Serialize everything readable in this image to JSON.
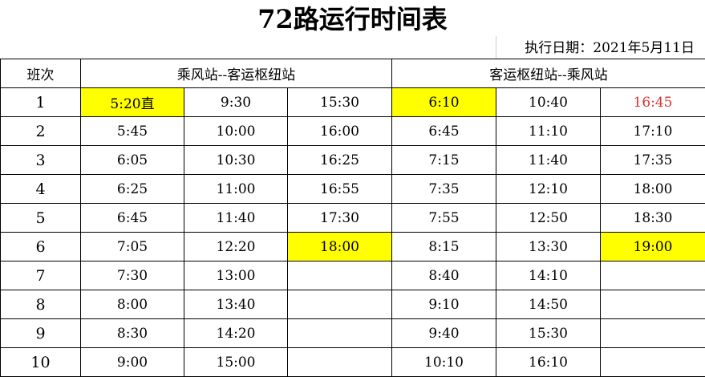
{
  "title": "72路运行时间表",
  "effective_date": "执行日期：2021年5月11日",
  "headers": {
    "index": "班次",
    "dir1": "乘风站--客运枢纽站",
    "dir2": "客运枢纽站--乘风站"
  },
  "highlight_color": "#ffff00",
  "alert_color": "#e03030",
  "rows": [
    {
      "n": "1",
      "dir1": [
        "5:20直",
        "9:30",
        "15:30"
      ],
      "dir2": [
        "6:10",
        "10:40",
        "16:45"
      ]
    },
    {
      "n": "2",
      "dir1": [
        "5:45",
        "10:00",
        "16:00"
      ],
      "dir2": [
        "6:45",
        "11:10",
        "17:10"
      ]
    },
    {
      "n": "3",
      "dir1": [
        "6:05",
        "10:30",
        "16:25"
      ],
      "dir2": [
        "7:15",
        "11:40",
        "17:35"
      ]
    },
    {
      "n": "4",
      "dir1": [
        "6:25",
        "11:00",
        "16:55"
      ],
      "dir2": [
        "7:35",
        "12:10",
        "18:00"
      ]
    },
    {
      "n": "5",
      "dir1": [
        "6:45",
        "11:40",
        "17:30"
      ],
      "dir2": [
        "7:55",
        "12:50",
        "18:30"
      ]
    },
    {
      "n": "6",
      "dir1": [
        "7:05",
        "12:20",
        "18:00"
      ],
      "dir2": [
        "8:15",
        "13:30",
        "19:00"
      ]
    },
    {
      "n": "7",
      "dir1": [
        "7:30",
        "13:00",
        ""
      ],
      "dir2": [
        "8:40",
        "14:10",
        ""
      ]
    },
    {
      "n": "8",
      "dir1": [
        "8:00",
        "13:40",
        ""
      ],
      "dir2": [
        "9:10",
        "14:50",
        ""
      ]
    },
    {
      "n": "9",
      "dir1": [
        "8:30",
        "14:20",
        ""
      ],
      "dir2": [
        "9:40",
        "15:30",
        ""
      ]
    },
    {
      "n": "10",
      "dir1": [
        "9:00",
        "15:00",
        ""
      ],
      "dir2": [
        "10:10",
        "16:10",
        ""
      ]
    }
  ],
  "highlighted_cells": [
    "1-dir1-0",
    "1-dir2-0",
    "6-dir1-2",
    "6-dir2-2"
  ],
  "red_cells": [
    "1-dir2-2"
  ]
}
